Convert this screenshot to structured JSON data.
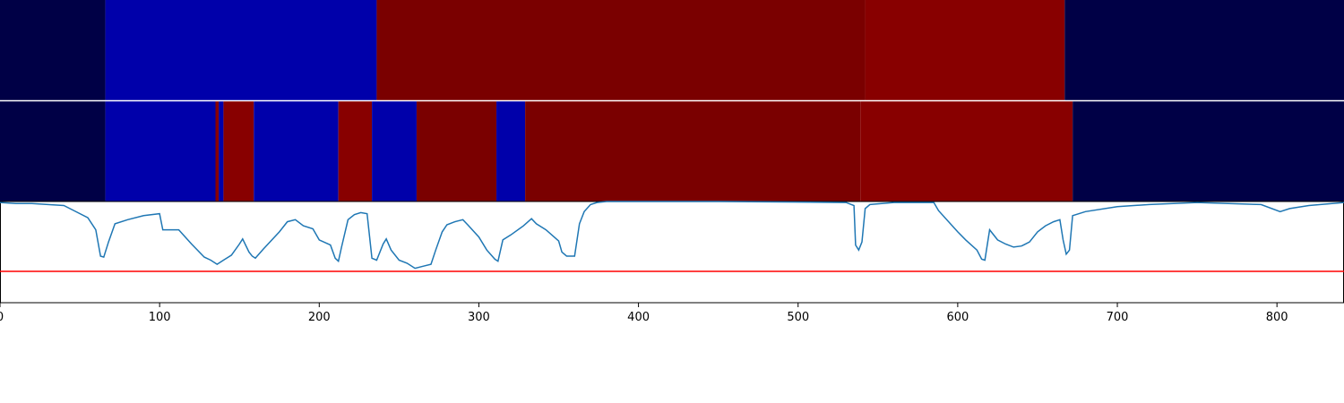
{
  "chart_data": {
    "type": "heatmap",
    "xlim": [
      0,
      842
    ],
    "x_ticks": [
      0,
      100,
      200,
      300,
      400,
      500,
      600,
      700,
      800
    ],
    "x_tick_labels": [
      "0",
      "100",
      "200",
      "300",
      "400",
      "500",
      "600",
      "700",
      "800"
    ],
    "grid": false,
    "legend": "none",
    "segment_tracks": [
      {
        "segments": [
          {
            "start": 0,
            "end": 66,
            "color": "#000046"
          },
          {
            "start": 66,
            "end": 236,
            "color": "#0000aa"
          },
          {
            "start": 236,
            "end": 542,
            "color": "#7a0000"
          },
          {
            "start": 542,
            "end": 667,
            "color": "#880000"
          },
          {
            "start": 667,
            "end": 842,
            "color": "#000046"
          }
        ]
      },
      {
        "segments": [
          {
            "start": 0,
            "end": 66,
            "color": "#000046"
          },
          {
            "start": 66,
            "end": 135,
            "color": "#0000aa"
          },
          {
            "start": 135,
            "end": 137,
            "color": "#880000"
          },
          {
            "start": 137,
            "end": 140,
            "color": "#0000aa"
          },
          {
            "start": 140,
            "end": 159,
            "color": "#880000"
          },
          {
            "start": 159,
            "end": 212,
            "color": "#0000aa"
          },
          {
            "start": 212,
            "end": 233,
            "color": "#880000"
          },
          {
            "start": 233,
            "end": 261,
            "color": "#0000aa"
          },
          {
            "start": 261,
            "end": 311,
            "color": "#7a0000"
          },
          {
            "start": 311,
            "end": 329,
            "color": "#0000aa"
          },
          {
            "start": 329,
            "end": 539,
            "color": "#7a0000"
          },
          {
            "start": 539,
            "end": 672,
            "color": "#880000"
          },
          {
            "start": 672,
            "end": 842,
            "color": "#000046"
          }
        ]
      }
    ],
    "line_panel": {
      "ylim": [
        0,
        1
      ],
      "series": [
        {
          "color": "#1f77b4",
          "points": [
            [
              0,
              0.99
            ],
            [
              10,
              0.98
            ],
            [
              20,
              0.98
            ],
            [
              30,
              0.97
            ],
            [
              40,
              0.96
            ],
            [
              45,
              0.92
            ],
            [
              55,
              0.84
            ],
            [
              60,
              0.72
            ],
            [
              63,
              0.46
            ],
            [
              65,
              0.45
            ],
            [
              68,
              0.6
            ],
            [
              72,
              0.78
            ],
            [
              80,
              0.82
            ],
            [
              90,
              0.86
            ],
            [
              100,
              0.88
            ],
            [
              102,
              0.72
            ],
            [
              106,
              0.72
            ],
            [
              112,
              0.72
            ],
            [
              120,
              0.58
            ],
            [
              128,
              0.45
            ],
            [
              132,
              0.42
            ],
            [
              136,
              0.38
            ],
            [
              140,
              0.42
            ],
            [
              145,
              0.47
            ],
            [
              150,
              0.58
            ],
            [
              152,
              0.63
            ],
            [
              156,
              0.5
            ],
            [
              158,
              0.46
            ],
            [
              160,
              0.44
            ],
            [
              165,
              0.53
            ],
            [
              175,
              0.7
            ],
            [
              180,
              0.8
            ],
            [
              185,
              0.82
            ],
            [
              190,
              0.76
            ],
            [
              196,
              0.73
            ],
            [
              200,
              0.62
            ],
            [
              207,
              0.57
            ],
            [
              210,
              0.44
            ],
            [
              212,
              0.41
            ],
            [
              214,
              0.55
            ],
            [
              218,
              0.82
            ],
            [
              222,
              0.87
            ],
            [
              226,
              0.89
            ],
            [
              230,
              0.88
            ],
            [
              233,
              0.44
            ],
            [
              236,
              0.42
            ],
            [
              240,
              0.58
            ],
            [
              242,
              0.63
            ],
            [
              245,
              0.52
            ],
            [
              250,
              0.42
            ],
            [
              255,
              0.39
            ],
            [
              260,
              0.34
            ],
            [
              265,
              0.36
            ],
            [
              270,
              0.38
            ],
            [
              273,
              0.52
            ],
            [
              277,
              0.7
            ],
            [
              280,
              0.77
            ],
            [
              285,
              0.8
            ],
            [
              290,
              0.82
            ],
            [
              293,
              0.77
            ],
            [
              300,
              0.65
            ],
            [
              305,
              0.52
            ],
            [
              310,
              0.43
            ],
            [
              312,
              0.41
            ],
            [
              315,
              0.62
            ],
            [
              320,
              0.67
            ],
            [
              328,
              0.76
            ],
            [
              333,
              0.83
            ],
            [
              336,
              0.78
            ],
            [
              342,
              0.72
            ],
            [
              350,
              0.61
            ],
            [
              352,
              0.5
            ],
            [
              355,
              0.46
            ],
            [
              360,
              0.46
            ],
            [
              363,
              0.78
            ],
            [
              366,
              0.9
            ],
            [
              370,
              0.97
            ],
            [
              374,
              0.99
            ],
            [
              380,
              1.0
            ],
            [
              450,
              1.0
            ],
            [
              530,
              0.99
            ],
            [
              535,
              0.96
            ],
            [
              536,
              0.57
            ],
            [
              538,
              0.52
            ],
            [
              540,
              0.6
            ],
            [
              542,
              0.93
            ],
            [
              545,
              0.97
            ],
            [
              560,
              0.99
            ],
            [
              585,
              0.99
            ],
            [
              588,
              0.91
            ],
            [
              600,
              0.7
            ],
            [
              605,
              0.62
            ],
            [
              612,
              0.52
            ],
            [
              615,
              0.43
            ],
            [
              617,
              0.42
            ],
            [
              620,
              0.72
            ],
            [
              625,
              0.62
            ],
            [
              630,
              0.58
            ],
            [
              635,
              0.55
            ],
            [
              640,
              0.56
            ],
            [
              645,
              0.6
            ],
            [
              650,
              0.7
            ],
            [
              655,
              0.76
            ],
            [
              660,
              0.8
            ],
            [
              664,
              0.82
            ],
            [
              666,
              0.62
            ],
            [
              668,
              0.48
            ],
            [
              670,
              0.52
            ],
            [
              672,
              0.86
            ],
            [
              680,
              0.9
            ],
            [
              700,
              0.95
            ],
            [
              720,
              0.97
            ],
            [
              750,
              0.99
            ],
            [
              790,
              0.97
            ],
            [
              802,
              0.9
            ],
            [
              808,
              0.93
            ],
            [
              820,
              0.96
            ],
            [
              842,
              0.99
            ]
          ]
        }
      ],
      "threshold": {
        "value": 0.31,
        "color": "#ff0000"
      }
    }
  }
}
